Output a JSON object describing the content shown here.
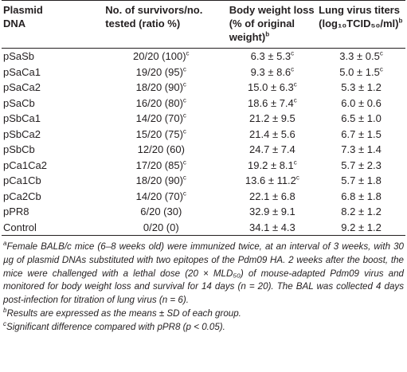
{
  "table": {
    "header": [
      {
        "text": "Plasmid DNA"
      },
      {
        "text": "No. of survivors/no. tested (ratio %)"
      },
      {
        "text": "Body weight loss (% of original weight)",
        "sup": "b"
      },
      {
        "text": "Lung virus titers (log₁₀TCID₅₀/ml)",
        "sup": "b"
      }
    ],
    "rows": [
      [
        "pSaSb",
        {
          "text": "20/20 (100)",
          "sup": "c"
        },
        {
          "text": "6.3 ± 5.3",
          "sup": "c"
        },
        {
          "text": "3.3 ± 0.5",
          "sup": "c"
        }
      ],
      [
        "pSaCa1",
        {
          "text": "19/20 (95)",
          "sup": "c"
        },
        {
          "text": "9.3 ± 8.6",
          "sup": "c"
        },
        {
          "text": "5.0 ± 1.5",
          "sup": "c"
        }
      ],
      [
        "pSaCa2",
        {
          "text": "18/20 (90)",
          "sup": "c"
        },
        {
          "text": "15.0 ± 6.3",
          "sup": "c"
        },
        "5.3 ± 1.2"
      ],
      [
        "pSaCb",
        {
          "text": "16/20 (80)",
          "sup": "c"
        },
        {
          "text": "18.6 ± 7.4",
          "sup": "c"
        },
        "6.0 ± 0.6"
      ],
      [
        "pSbCa1",
        {
          "text": "14/20 (70)",
          "sup": "c"
        },
        "21.2 ± 9.5",
        "6.5 ± 1.0"
      ],
      [
        "pSbCa2",
        {
          "text": "15/20 (75)",
          "sup": "c"
        },
        "21.4 ± 5.6",
        "6.7 ± 1.5"
      ],
      [
        "pSbCb",
        "12/20 (60)",
        "24.7 ± 7.4",
        "7.3 ± 1.4"
      ],
      [
        "pCa1Ca2",
        {
          "text": "17/20 (85)",
          "sup": "c"
        },
        {
          "text": "19.2 ± 8.1",
          "sup": "c"
        },
        "5.7 ± 2.3"
      ],
      [
        "pCa1Cb",
        {
          "text": "18/20 (90)",
          "sup": "c"
        },
        {
          "text": "13.6 ± 11.2",
          "sup": "c"
        },
        "5.7 ± 1.8"
      ],
      [
        "pCa2Cb",
        {
          "text": "14/20 (70)",
          "sup": "c"
        },
        "22.1 ± 6.8",
        "6.8 ± 1.8"
      ],
      [
        "pPR8",
        "6/20 (30)",
        "32.9 ± 9.1",
        "8.2 ± 1.2"
      ],
      [
        "Control",
        "0/20 (0)",
        "34.1 ± 4.3",
        "9.2 ± 1.2"
      ]
    ]
  },
  "footnotes": [
    {
      "mark": "a",
      "text": "Female BALB/c mice (6–8 weeks old) were immunized twice, at an interval of 3 weeks, with 30 µg of plasmid DNAs substituted with two epitopes of the Pdm09 HA. 2 weeks after the boost, the mice were challenged with a lethal dose (20 × MLD₅₀) of mouse-adapted Pdm09 virus and monitored for body weight loss and survival for 14 days (n = 20). The BAL was collected 4 days post-infection for titration of lung virus (n = 6)."
    },
    {
      "mark": "b",
      "text": "Results are expressed as the means ± SD of each group."
    },
    {
      "mark": "c",
      "text": "Significant difference compared with pPR8 (p < 0.05)."
    }
  ]
}
